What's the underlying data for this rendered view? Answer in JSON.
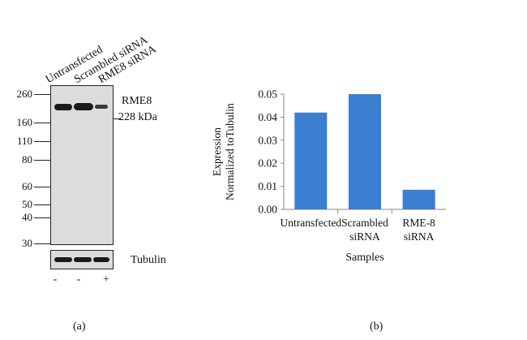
{
  "panel_a": {
    "lane_labels": [
      "Untransfected",
      "Scrambled siRNA",
      "RME8 siRNA"
    ],
    "mw_markers": [
      "260",
      "160",
      "110",
      "80",
      "60",
      "50",
      "40",
      "30"
    ],
    "band_label": "RME8",
    "band_size": "228 kDa",
    "loading_label": "Tubulin",
    "treatment_signs": [
      "-",
      "-",
      "+"
    ],
    "caption": "(a)"
  },
  "panel_b": {
    "caption": "(b)"
  },
  "chart_data": {
    "type": "bar",
    "categories": [
      "Untransfected",
      "Scrambled siRNA",
      "RME-8 siRNA"
    ],
    "category_lines": [
      [
        "Untransfected"
      ],
      [
        "Scrambled",
        "siRNA"
      ],
      [
        "RME-8",
        "siRNA"
      ]
    ],
    "values": [
      0.042,
      0.05,
      0.0085
    ],
    "xlabel": "Samples",
    "ylabel_lines": [
      "Expression",
      "Normalized toTubulin"
    ],
    "ylim": [
      0,
      0.05
    ],
    "yticks": [
      "0.00",
      "0.01",
      "0.02",
      "0.03",
      "0.04",
      "0.05"
    ],
    "bar_color": "#3a7fd0",
    "grid": false
  }
}
